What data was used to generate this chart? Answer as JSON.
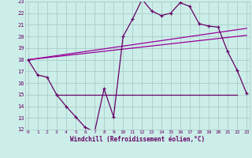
{
  "xlabel": "Windchill (Refroidissement éolien,°C)",
  "bg_color": "#cceee8",
  "grid_color": "#aacccc",
  "line_color": "#990099",
  "dark_line_color": "#660066",
  "xmin": 0,
  "xmax": 23,
  "ymin": 12,
  "ymax": 23,
  "yticks": [
    12,
    13,
    14,
    15,
    16,
    17,
    18,
    19,
    20,
    21,
    22,
    23
  ],
  "xticks": [
    0,
    1,
    2,
    3,
    4,
    5,
    6,
    7,
    8,
    9,
    10,
    11,
    12,
    13,
    14,
    15,
    16,
    17,
    18,
    19,
    20,
    21,
    22,
    23
  ],
  "main_line_x": [
    0,
    1,
    2,
    3,
    4,
    5,
    6,
    7,
    8,
    9,
    10,
    11,
    12,
    13,
    14,
    15,
    16,
    17,
    18,
    19,
    20,
    21,
    22,
    23
  ],
  "main_line_y": [
    18.0,
    16.7,
    16.5,
    15.0,
    14.0,
    13.1,
    12.2,
    11.8,
    15.5,
    13.1,
    20.0,
    21.5,
    23.2,
    22.2,
    21.8,
    22.0,
    22.9,
    22.6,
    21.1,
    20.9,
    20.8,
    18.7,
    17.1,
    15.1
  ],
  "trend1_x": [
    0,
    23
  ],
  "trend1_y": [
    18.0,
    20.2
  ],
  "trend2_x": [
    0,
    23
  ],
  "trend2_y": [
    18.0,
    20.8
  ],
  "flat_line_x": [
    3,
    10,
    10,
    22
  ],
  "flat_line_y": [
    15.0,
    15.0,
    15.0,
    15.0
  ]
}
